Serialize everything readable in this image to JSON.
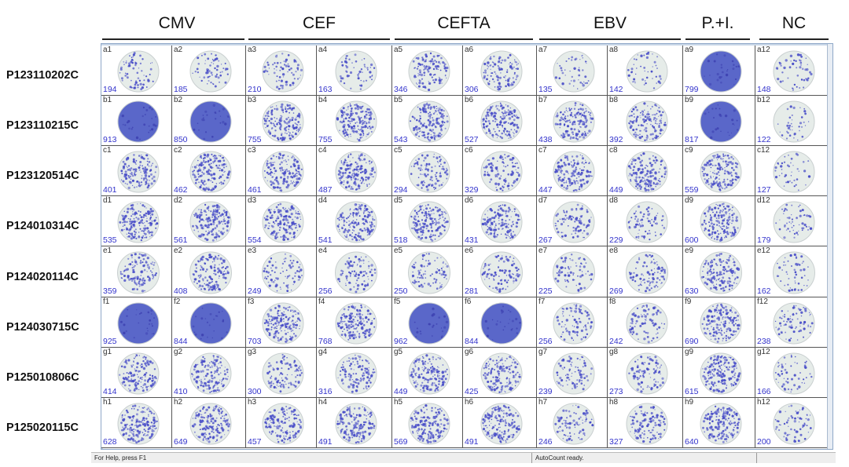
{
  "groups": [
    "CMV",
    "CEF",
    "CEFTA",
    "EBV",
    "P.+I.",
    "NC"
  ],
  "row_labels": [
    "P123110202C",
    "P123110215C",
    "P123120514C",
    "P124010314C",
    "P124020114C",
    "P124030715C",
    "P125010806C",
    "P125020115C"
  ],
  "wells": [
    [
      {
        "id": "a1",
        "count": "194"
      },
      {
        "id": "a2",
        "count": "185"
      },
      {
        "id": "a3",
        "count": "210"
      },
      {
        "id": "a4",
        "count": "163"
      },
      {
        "id": "a5",
        "count": "346"
      },
      {
        "id": "a6",
        "count": "306"
      },
      {
        "id": "a7",
        "count": "135"
      },
      {
        "id": "a8",
        "count": "142"
      },
      {
        "id": "a9",
        "count": "799"
      },
      {
        "id": "a12",
        "count": "148"
      }
    ],
    [
      {
        "id": "b1",
        "count": "913"
      },
      {
        "id": "b2",
        "count": "850"
      },
      {
        "id": "b3",
        "count": "755"
      },
      {
        "id": "b4",
        "count": "755"
      },
      {
        "id": "b5",
        "count": "543"
      },
      {
        "id": "b6",
        "count": "527"
      },
      {
        "id": "b7",
        "count": "438"
      },
      {
        "id": "b8",
        "count": "392"
      },
      {
        "id": "b9",
        "count": "817"
      },
      {
        "id": "b12",
        "count": "122"
      }
    ],
    [
      {
        "id": "c1",
        "count": "401"
      },
      {
        "id": "c2",
        "count": "462"
      },
      {
        "id": "c3",
        "count": "461"
      },
      {
        "id": "c4",
        "count": "487"
      },
      {
        "id": "c5",
        "count": "294"
      },
      {
        "id": "c6",
        "count": "329"
      },
      {
        "id": "c7",
        "count": "447"
      },
      {
        "id": "c8",
        "count": "449"
      },
      {
        "id": "c9",
        "count": "559"
      },
      {
        "id": "c12",
        "count": "127"
      }
    ],
    [
      {
        "id": "d1",
        "count": "535"
      },
      {
        "id": "d2",
        "count": "561"
      },
      {
        "id": "d3",
        "count": "554"
      },
      {
        "id": "d4",
        "count": "541"
      },
      {
        "id": "d5",
        "count": "518"
      },
      {
        "id": "d6",
        "count": "431"
      },
      {
        "id": "d7",
        "count": "267"
      },
      {
        "id": "d8",
        "count": "229"
      },
      {
        "id": "d9",
        "count": "600"
      },
      {
        "id": "d12",
        "count": "179"
      }
    ],
    [
      {
        "id": "e1",
        "count": "359"
      },
      {
        "id": "e2",
        "count": "408"
      },
      {
        "id": "e3",
        "count": "249"
      },
      {
        "id": "e4",
        "count": "256"
      },
      {
        "id": "e5",
        "count": "250"
      },
      {
        "id": "e6",
        "count": "281"
      },
      {
        "id": "e7",
        "count": "225"
      },
      {
        "id": "e8",
        "count": "269"
      },
      {
        "id": "e9",
        "count": "630"
      },
      {
        "id": "e12",
        "count": "162"
      }
    ],
    [
      {
        "id": "f1",
        "count": "925"
      },
      {
        "id": "f2",
        "count": "844"
      },
      {
        "id": "f3",
        "count": "703"
      },
      {
        "id": "f4",
        "count": "768"
      },
      {
        "id": "f5",
        "count": "962"
      },
      {
        "id": "f6",
        "count": "844"
      },
      {
        "id": "f7",
        "count": "256"
      },
      {
        "id": "f8",
        "count": "242"
      },
      {
        "id": "f9",
        "count": "690"
      },
      {
        "id": "f12",
        "count": "238"
      }
    ],
    [
      {
        "id": "g1",
        "count": "414"
      },
      {
        "id": "g2",
        "count": "410"
      },
      {
        "id": "g3",
        "count": "300"
      },
      {
        "id": "g4",
        "count": "316"
      },
      {
        "id": "g5",
        "count": "449"
      },
      {
        "id": "g6",
        "count": "425"
      },
      {
        "id": "g7",
        "count": "239"
      },
      {
        "id": "g8",
        "count": "273"
      },
      {
        "id": "g9",
        "count": "615"
      },
      {
        "id": "g12",
        "count": "166"
      }
    ],
    [
      {
        "id": "h1",
        "count": "628"
      },
      {
        "id": "h2",
        "count": "649"
      },
      {
        "id": "h3",
        "count": "457"
      },
      {
        "id": "h4",
        "count": "491"
      },
      {
        "id": "h5",
        "count": "569"
      },
      {
        "id": "h6",
        "count": "491"
      },
      {
        "id": "h7",
        "count": "246"
      },
      {
        "id": "h8",
        "count": "327"
      },
      {
        "id": "h9",
        "count": "640"
      },
      {
        "id": "h12",
        "count": "200"
      }
    ]
  ],
  "status": {
    "help": "For Help, press F1",
    "ready": "AutoCount ready."
  },
  "colors": {
    "well_bg": "#e6ece9",
    "spot": "#4a4fc8",
    "dense": "#5a67c9",
    "count_text": "#3333cc"
  }
}
